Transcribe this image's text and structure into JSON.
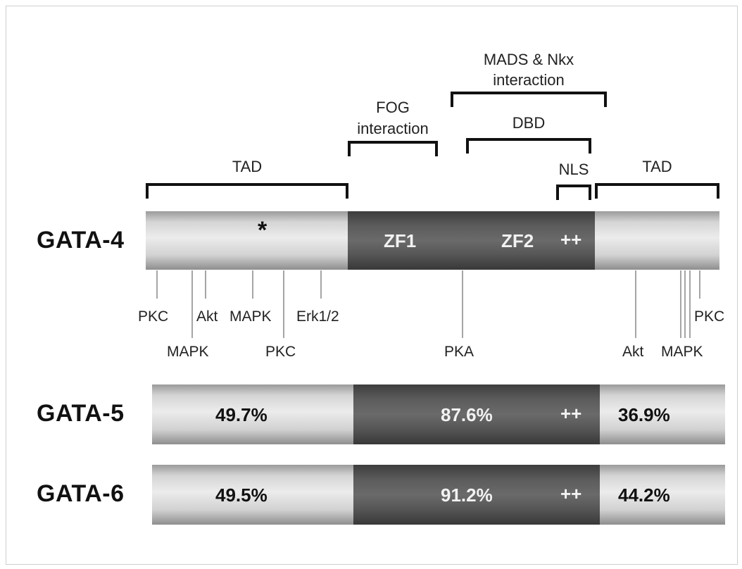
{
  "brackets": {
    "tad_left": "TAD",
    "fog": [
      "FOG",
      "interaction"
    ],
    "mads": [
      "MADS & Nkx",
      "interaction"
    ],
    "dbd": "DBD",
    "nls": "NLS",
    "tad_right": "TAD"
  },
  "rows": {
    "gata4": {
      "label": "GATA-4",
      "asterisk": "*",
      "zf1": "ZF1",
      "zf2": "ZF2",
      "charge": "++"
    },
    "gata5": {
      "label": "GATA-5",
      "left_pct": "49.7%",
      "mid_pct": "87.6%",
      "charge": "++",
      "right_pct": "36.9%"
    },
    "gata6": {
      "label": "GATA-6",
      "left_pct": "49.5%",
      "mid_pct": "91.2%",
      "charge": "++",
      "right_pct": "44.2%"
    }
  },
  "sites": {
    "pkc1": "PKC",
    "mapk1": "MAPK",
    "akt1": "Akt",
    "mapk2": "MAPK",
    "pkc2": "PKC",
    "erk": "Erk1/2",
    "pka": "PKA",
    "akt2": "Akt",
    "mapk3": "MAPK",
    "pkc3": "PKC"
  },
  "colors": {
    "dark_domain": "#5c5c5c",
    "light_domain": "#ececec",
    "bracket": "#111111",
    "tick": "#a5a5a5"
  }
}
